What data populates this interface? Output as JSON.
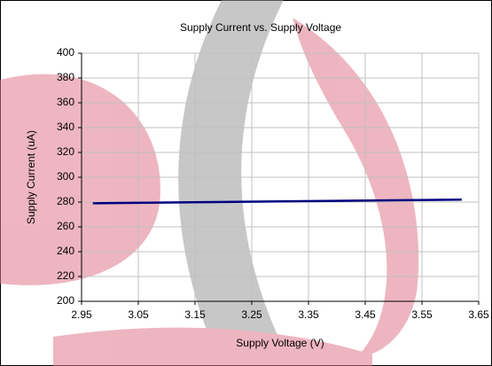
{
  "chart_data": {
    "type": "line",
    "title": "Supply Current vs. Supply Voltage",
    "x_label": "Supply Voltage (V)",
    "y_label": "Supply Current (uA)",
    "x": [
      2.97,
      3.3,
      3.62
    ],
    "values": [
      279,
      280.5,
      282
    ],
    "color": "#000080",
    "xlim": [
      2.95,
      3.65
    ],
    "xticks": [
      2.95,
      3.05,
      3.15,
      3.25,
      3.35,
      3.45,
      3.55,
      3.65
    ],
    "ylim": [
      200,
      400
    ],
    "yticks": [
      200,
      220,
      240,
      260,
      280,
      300,
      320,
      340,
      360,
      380,
      400
    ],
    "grid": true
  }
}
